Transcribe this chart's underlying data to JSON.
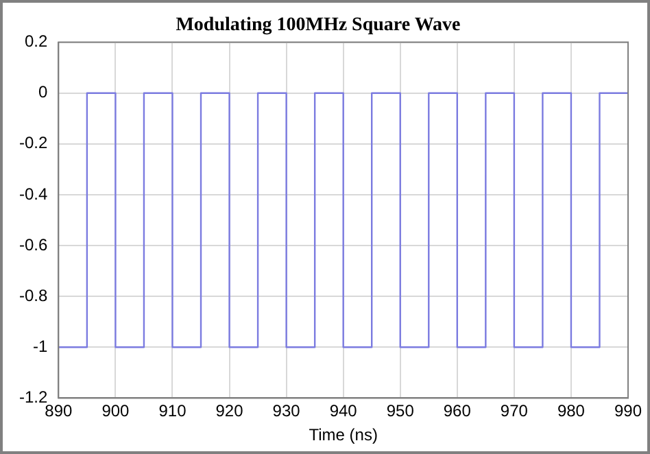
{
  "chart_data": {
    "type": "step",
    "title": "Modulating 100MHz Square Wave",
    "xlabel": "Time (ns)",
    "x": [
      890,
      895,
      900,
      905,
      910,
      915,
      920,
      925,
      930,
      935,
      940,
      945,
      950,
      955,
      960,
      965,
      970,
      975,
      980,
      985,
      990
    ],
    "series": [
      {
        "color": "#7b7be0",
        "values": [
          -1,
          0,
          -1,
          0,
          -1,
          0,
          -1,
          0,
          -1,
          0,
          -1,
          0,
          -1,
          0,
          -1,
          0,
          -1,
          0,
          -1,
          0,
          0
        ]
      }
    ],
    "xlim": [
      890,
      990
    ],
    "xticks": [
      890,
      900,
      910,
      920,
      930,
      940,
      950,
      960,
      970,
      980,
      990
    ],
    "ylim": [
      -1.2,
      0.2
    ],
    "yticks": [
      -1.2,
      -1,
      -0.8,
      -0.6,
      -0.4,
      -0.2,
      0,
      0.2
    ],
    "grid": true,
    "legend": false
  }
}
